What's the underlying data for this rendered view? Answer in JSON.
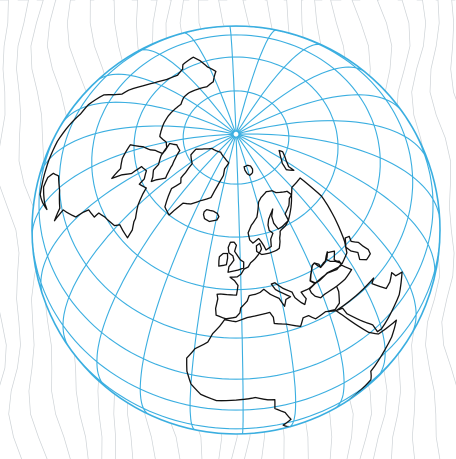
{
  "map": {
    "projection": "orthographic",
    "center": {
      "lat": 62,
      "lon": -2
    },
    "graticule_spacing_deg": 15,
    "colors": {
      "background": "#ffffff",
      "texture": "#cdd2d6",
      "graticule": "#3aaee0",
      "coastline": "#111111"
    },
    "landmasses": [
      "greenland",
      "iceland",
      "british-isles",
      "scandinavia",
      "europe",
      "north-africa",
      "arabian-peninsula",
      "north-america"
    ]
  }
}
